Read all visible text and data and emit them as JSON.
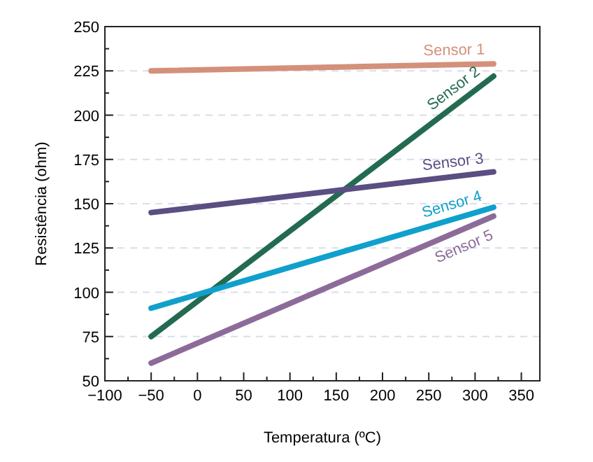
{
  "chart_data": {
    "type": "line",
    "xlabel": "Temperatura (ºC)",
    "ylabel": "Resistência (ohm)",
    "xlim": [
      -100,
      370
    ],
    "ylim": [
      50,
      250
    ],
    "xticks": [
      -100,
      {
        "value": -75,
        "label": null
      },
      -50,
      {
        "value": -25,
        "label": null
      },
      0,
      {
        "value": 25,
        "label": null
      },
      50,
      {
        "value": 75,
        "label": null
      },
      100,
      {
        "value": 125,
        "label": null
      },
      150,
      {
        "value": 175,
        "label": null
      },
      200,
      {
        "value": 225,
        "label": null
      },
      250,
      {
        "value": 275,
        "label": null
      },
      300,
      {
        "value": 325,
        "label": null
      },
      350
    ],
    "yticks": [
      50,
      {
        "value": 62.5,
        "label": null
      },
      75,
      {
        "value": 87.5,
        "label": null
      },
      100,
      {
        "value": 112.5,
        "label": null
      },
      125,
      {
        "value": 137.5,
        "label": null
      },
      150,
      {
        "value": 162.5,
        "label": null
      },
      175,
      {
        "value": 187.5,
        "label": null
      },
      200,
      {
        "value": 212.5,
        "label": null
      },
      225,
      {
        "value": 237.5,
        "label": null
      },
      250
    ],
    "grid": "y",
    "legend": false,
    "marker": "none",
    "line_style": "solid",
    "x": [
      -50,
      320
    ],
    "series": [
      {
        "name": "Sensor 1",
        "color": "#d4907a",
        "values": [
          225,
          229
        ]
      },
      {
        "name": "Sensor 2",
        "color": "#236b50",
        "values": [
          75,
          222
        ]
      },
      {
        "name": "Sensor 3",
        "color": "#5a4e82",
        "values": [
          145,
          168
        ]
      },
      {
        "name": "Sensor 4",
        "color": "#10a0cc",
        "values": [
          91,
          148
        ]
      },
      {
        "name": "Sensor 5",
        "color": "#8c6b99",
        "values": [
          60,
          143
        ]
      }
    ]
  }
}
